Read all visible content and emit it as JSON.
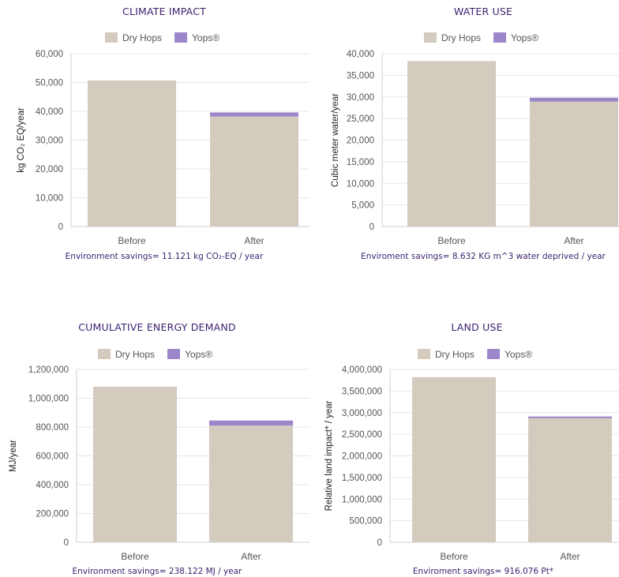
{
  "colors": {
    "dry_hops": "#d4cbbf",
    "yops": "#9b87c9",
    "title": "#3b1f6e",
    "note": "#3b1f6e"
  },
  "chart_data": [
    {
      "type": "bar",
      "stacked": true,
      "title": "CLIMATE IMPACT",
      "ylabel": "kg CO₂ EQ/year",
      "categories": [
        "Before",
        "After"
      ],
      "series": [
        {
          "name": "Dry Hops",
          "values": [
            50700,
            38200
          ]
        },
        {
          "name": "Yops®",
          "values": [
            0,
            1400
          ]
        }
      ],
      "ylim": [
        0,
        60000
      ],
      "yticks": [
        "0",
        "10,000",
        "20,000",
        "30,000",
        "40,000",
        "50,000",
        "60,000"
      ],
      "legend": "top-center",
      "grid": true,
      "note": "Environment savings= 11.121 kg CO₂-EQ / year"
    },
    {
      "type": "bar",
      "stacked": true,
      "title": "WATER USE",
      "ylabel": "Cubic meter water/year",
      "categories": [
        "Before",
        "After"
      ],
      "series": [
        {
          "name": "Dry Hops",
          "values": [
            38300,
            28900
          ]
        },
        {
          "name": "Yops®",
          "values": [
            0,
            900
          ]
        }
      ],
      "ylim": [
        0,
        40000
      ],
      "yticks": [
        "0",
        "5,000",
        "10,000",
        "15,000",
        "20,000",
        "25,000",
        "30,000",
        "35,000",
        "40,000"
      ],
      "legend": "top-center",
      "grid": true,
      "note": "Enviroment savings= 8.632 KG m^3 water deprived / year"
    },
    {
      "type": "bar",
      "stacked": true,
      "title": "CUMULATIVE ENERGY DEMAND",
      "ylabel": "MJ/year",
      "categories": [
        "Before",
        "After"
      ],
      "series": [
        {
          "name": "Dry Hops",
          "values": [
            1080000,
            810000
          ]
        },
        {
          "name": "Yops®",
          "values": [
            0,
            35000
          ]
        }
      ],
      "ylim": [
        0,
        1200000
      ],
      "yticks": [
        "0",
        "200,000",
        "400,000",
        "600,000",
        "800,000",
        "1,000,000",
        "1,200,000"
      ],
      "legend": "top-center",
      "grid": true,
      "note": "Environment savings= 238.122 MJ / year"
    },
    {
      "type": "bar",
      "stacked": true,
      "title": "LAND USE",
      "ylabel": "Relative land impact* / year",
      "categories": [
        "Before",
        "After"
      ],
      "series": [
        {
          "name": "Dry Hops",
          "values": [
            3820000,
            2870000
          ]
        },
        {
          "name": "Yops®",
          "values": [
            0,
            40000
          ]
        }
      ],
      "ylim": [
        0,
        4000000
      ],
      "yticks": [
        "0",
        "500,000",
        "1,000,000",
        "1,500,000",
        "2,000,000",
        "2,500,000",
        "3,000,000",
        "3,500,000",
        "4,000,000"
      ],
      "legend": "top-center",
      "grid": true,
      "note": "Enviroment savings= 916.076 Pt*"
    }
  ]
}
